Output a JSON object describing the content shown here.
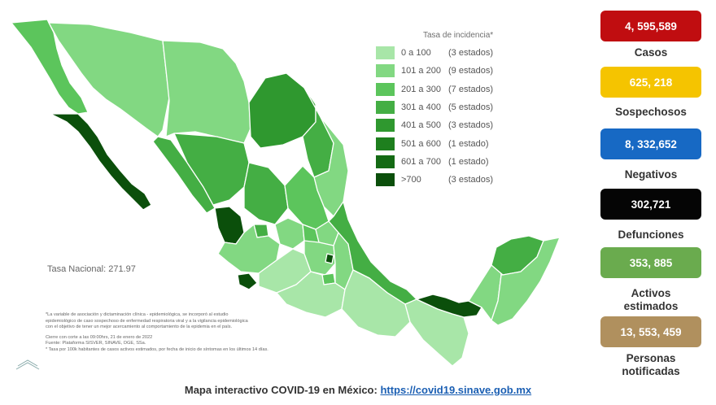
{
  "legend": {
    "title": "Tasa de incidencia*",
    "items": [
      {
        "range": "0 a  100",
        "count": "(3 estados)",
        "color": "#a8e6a8"
      },
      {
        "range": "101 a  200",
        "count": "(9 estados)",
        "color": "#82d882"
      },
      {
        "range": "201 a  300",
        "count": "(7 estados)",
        "color": "#5cc55c"
      },
      {
        "range": "301 a  400",
        "count": "(5 estados)",
        "color": "#44ae44"
      },
      {
        "range": "401 a  500",
        "count": "(3 estados)",
        "color": "#2f982f"
      },
      {
        "range": "501 a  600",
        "count": "(1 estado)",
        "color": "#1e7f1e"
      },
      {
        "range": "601 a  700",
        "count": "(1 estado)",
        "color": "#146a14"
      },
      {
        "range": ">700",
        "count": "(3 estados)",
        "color": "#0b4f0b"
      }
    ]
  },
  "tasa_nacional": "Tasa Nacional: 271.97",
  "notes": {
    "line1": "*La variable de asociación y dictaminación clínica - epidemiológica, se incorporó al estudio",
    "line2": "epidemiológico de caso sospechoso de enfermedad respiratoria viral y a la vigilancia epidemiológica",
    "line3": "con el objetivo de tener un mejor acercamiento al comportamiento de la epidemia en el país.",
    "line4": "Cierre con corte a las 09:00hrs, 21 de enero de 2022",
    "line5": "Fuente: Plataforma SISVER, SINAVE, DGE, SSa.",
    "line6": "* Tasa por 100k habitantes de casos activos estimados, por fecha de inicio de síntomas en los últimos 14 días."
  },
  "stats": [
    {
      "value": "4, 595,589",
      "label": "Casos",
      "color": "#c00d10"
    },
    {
      "value": "625, 218",
      "label": "Sospechosos",
      "color": "#f5c400"
    },
    {
      "value": "8, 332,652",
      "label": "Negativos",
      "color": "#1769c4"
    },
    {
      "value": "302,721",
      "label": "Defunciones",
      "color": "#050505"
    },
    {
      "value": "353, 885",
      "label": "Activos estimados",
      "label_l1": "Activos",
      "label_l2": "estimados",
      "color": "#6aab4e"
    },
    {
      "value": "13, 553, 459",
      "label": "Personas notificadas",
      "label_l1": "Personas",
      "label_l2": "notificadas",
      "color": "#b0905e"
    }
  ],
  "footer": {
    "text": "Mapa interactivo COVID-19 en México: ",
    "url": "https://covid19.sinave.gob.mx"
  }
}
